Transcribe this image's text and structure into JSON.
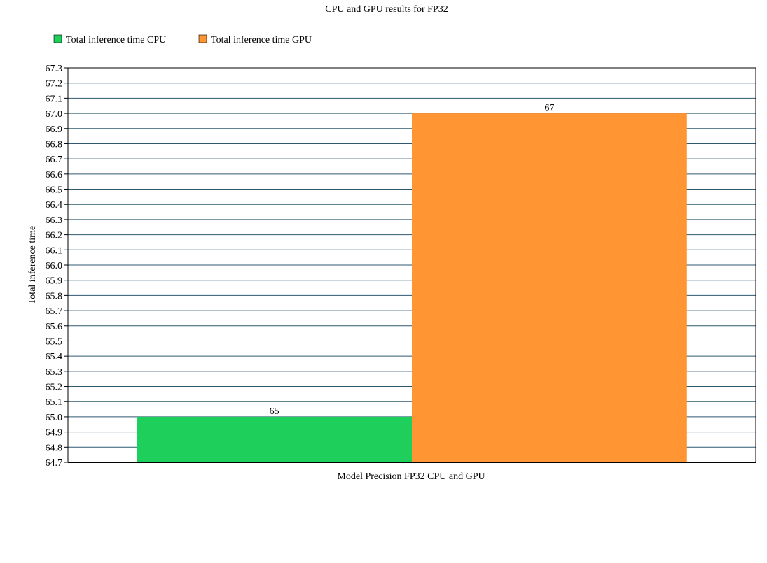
{
  "chart_data": {
    "type": "bar",
    "title": "CPU and GPU results for FP32",
    "xlabel": "Model Precision FP32 CPU and GPU",
    "ylabel": "Total inference time",
    "categories": [
      ""
    ],
    "series": [
      {
        "name": "Total inference time CPU",
        "values": [
          65
        ],
        "color": "#1fcf5c",
        "data_label": "65"
      },
      {
        "name": "Total inference time GPU",
        "values": [
          67
        ],
        "color": "#ff9533",
        "data_label": "67"
      }
    ],
    "ylim": [
      64.7,
      67.3
    ],
    "ytick_step": 0.1,
    "grid": true,
    "legend_position": "top-left"
  }
}
